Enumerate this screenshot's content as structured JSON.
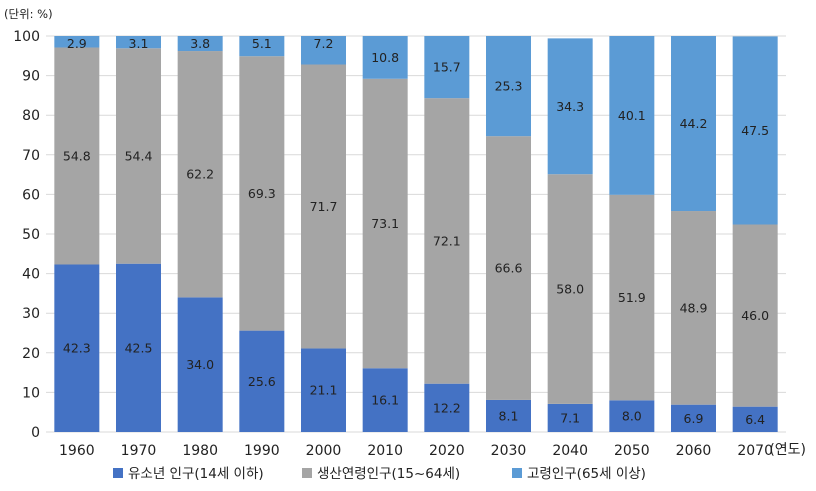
{
  "chart_data": {
    "type": "bar",
    "stacked": true,
    "unit_label": "(단위: %)",
    "x_unit_label": "(연도)",
    "categories": [
      "1960",
      "1970",
      "1980",
      "1990",
      "2000",
      "2010",
      "2020",
      "2030",
      "2040",
      "2050",
      "2060",
      "2070"
    ],
    "series": [
      {
        "name": "유소년 인구(14세 이하)",
        "color": "#4472c4",
        "values": [
          42.3,
          42.5,
          34.0,
          25.6,
          21.1,
          16.1,
          12.2,
          8.1,
          7.1,
          8.0,
          6.9,
          6.4
        ],
        "labels": [
          "42.3",
          "42.5",
          "34.0",
          "25.6",
          "21.1",
          "16.1",
          "12.2",
          "8.1",
          "7.1",
          "8.0",
          "6.9",
          "6.4"
        ]
      },
      {
        "name": "생산연령인구(15~64세)",
        "color": "#a5a5a5",
        "values": [
          54.8,
          54.4,
          62.2,
          69.3,
          71.7,
          73.1,
          72.1,
          66.6,
          58.0,
          51.9,
          48.9,
          46.0
        ],
        "labels": [
          "54.8",
          "54.4",
          "62.2",
          "69.3",
          "71.7",
          "73.1",
          "72.1",
          "66.6",
          "58.0",
          "51.9",
          "48.9",
          "46.0"
        ]
      },
      {
        "name": "고령인구(65세 이상)",
        "color": "#5b9bd5",
        "values": [
          2.9,
          3.1,
          3.8,
          5.1,
          7.2,
          10.8,
          15.7,
          25.3,
          34.3,
          40.1,
          44.2,
          47.5
        ],
        "labels": [
          "2.9",
          "3.1",
          "3.8",
          "5.1",
          "7.2",
          "10.8",
          "15.7",
          "25.3",
          "34.3",
          "40.1",
          "44.2",
          "47.5"
        ]
      }
    ],
    "ylim": [
      0,
      100
    ],
    "yticks": [
      "0",
      "10",
      "20",
      "30",
      "40",
      "50",
      "60",
      "70",
      "80",
      "90",
      "100"
    ],
    "grid": true,
    "legend_position": "bottom"
  }
}
